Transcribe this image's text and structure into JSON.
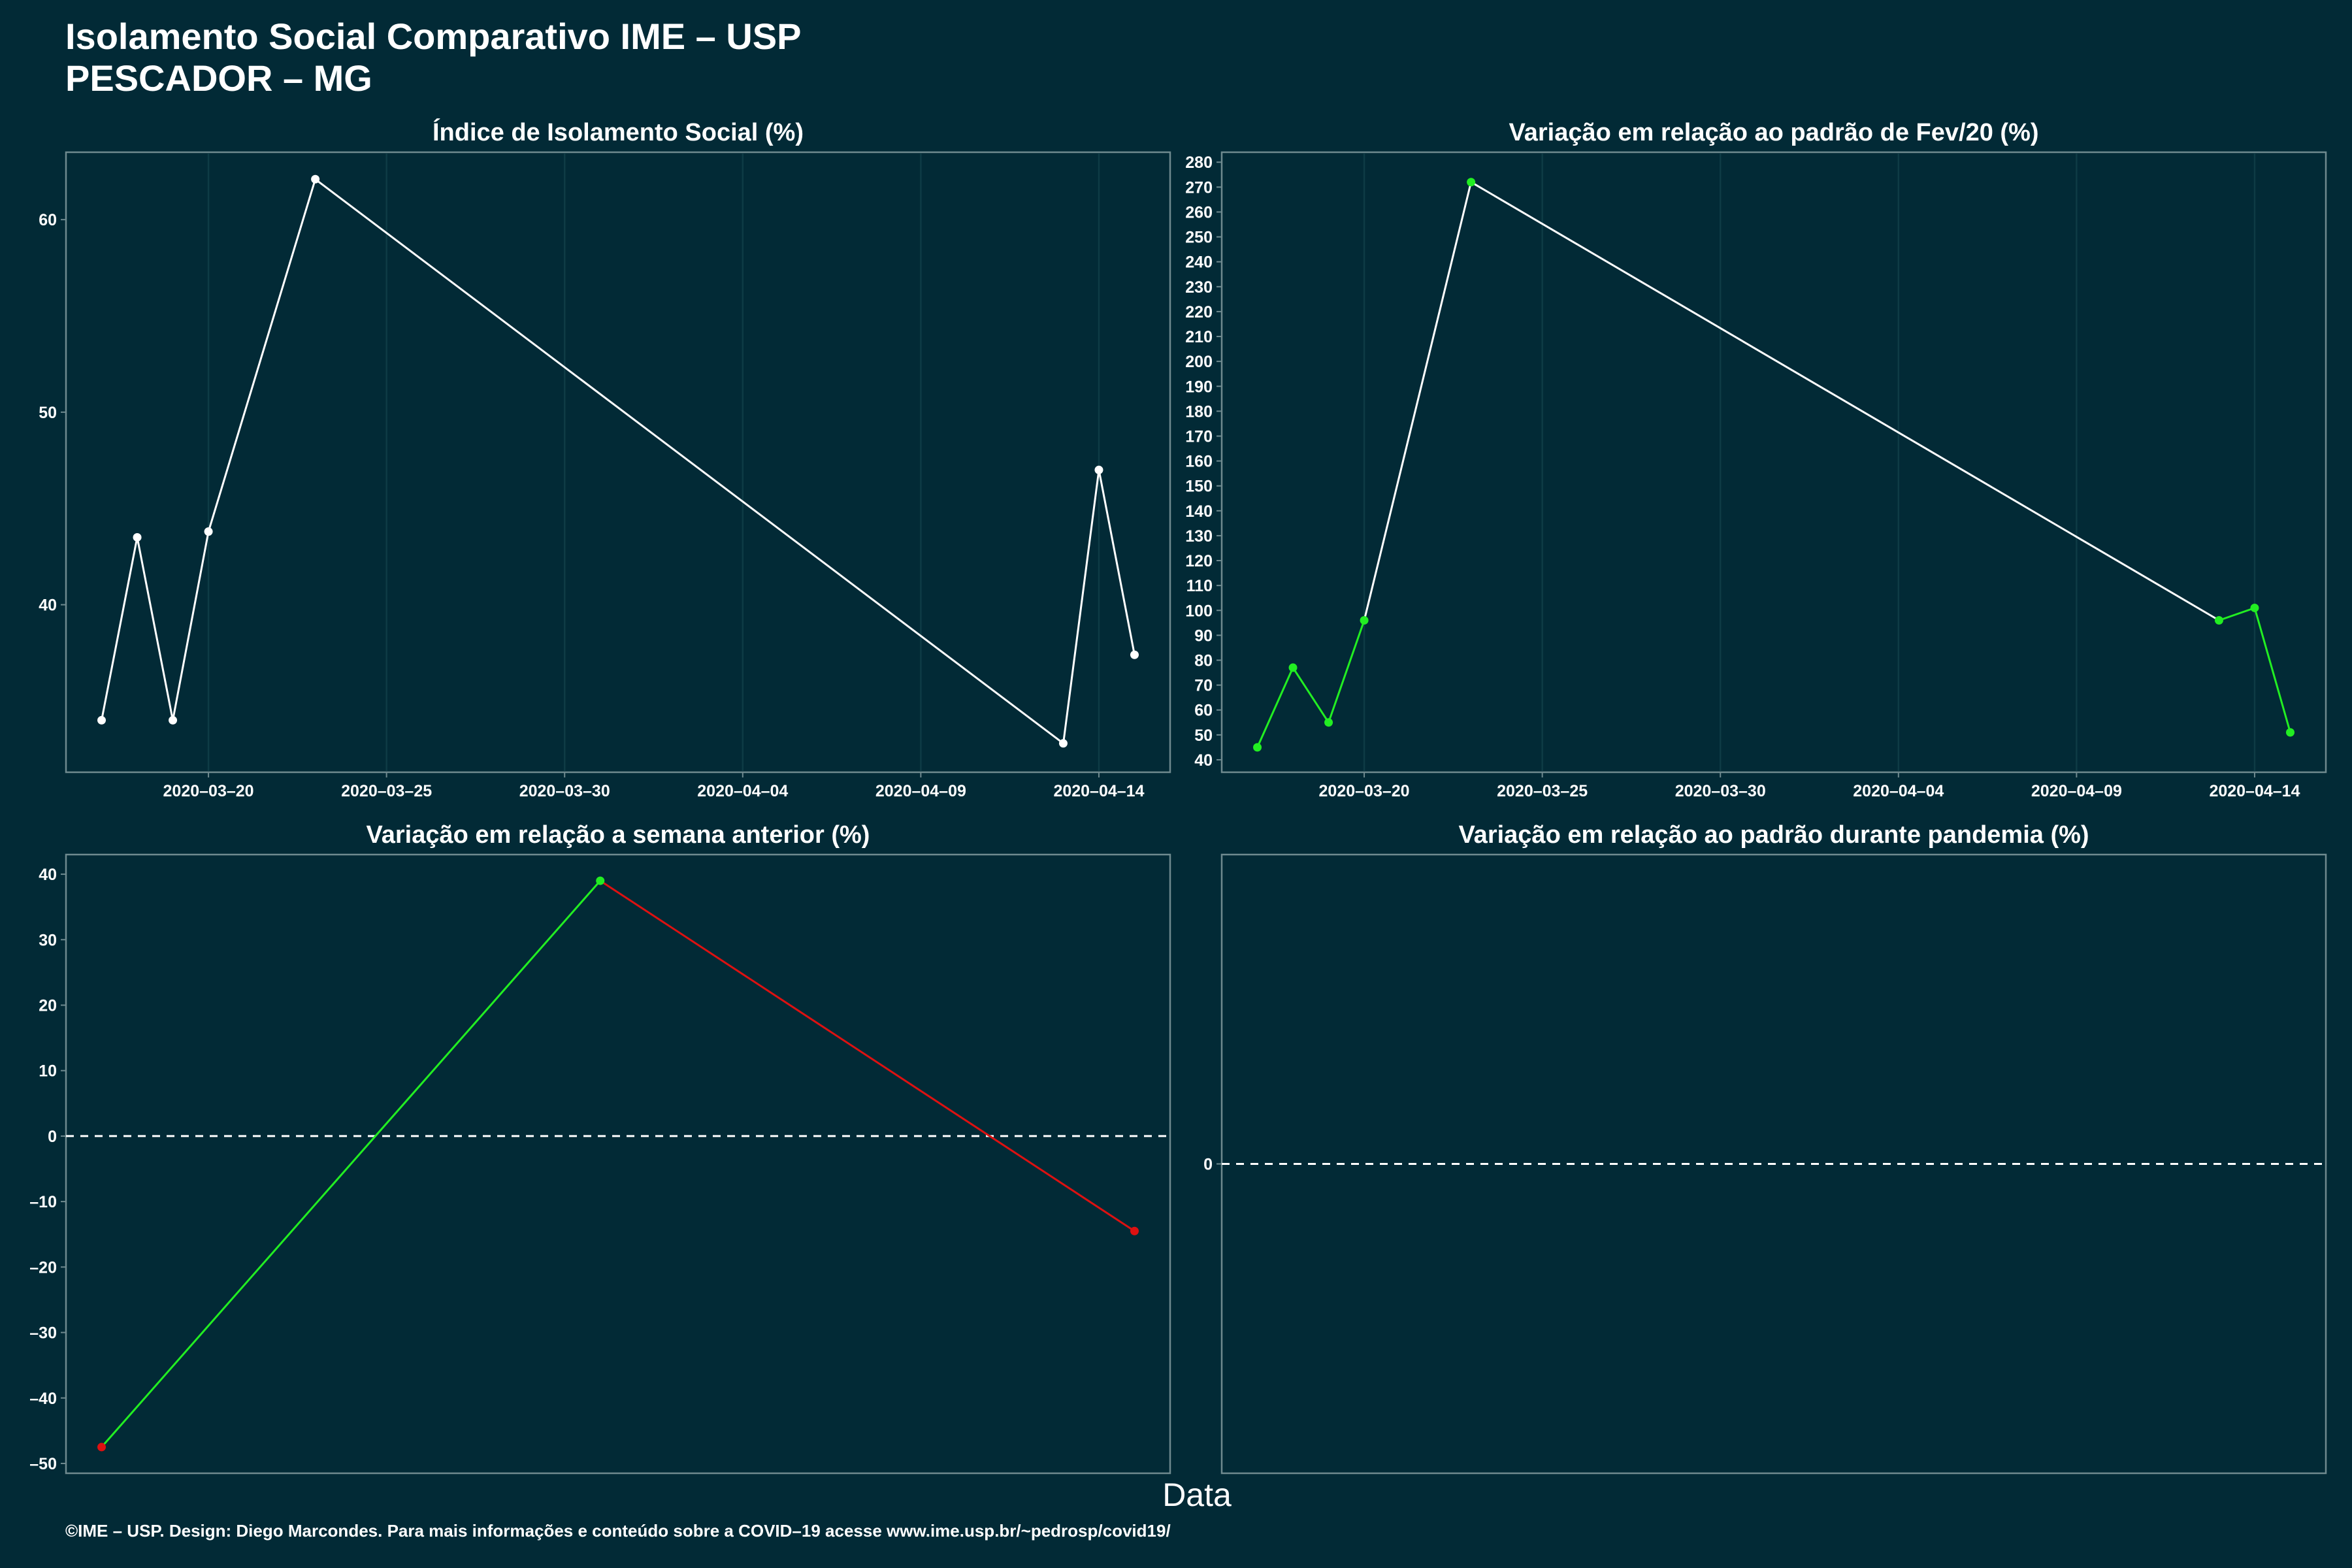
{
  "header": {
    "title_line1": "Isolamento Social Comparativo IME – USP",
    "title_line2": "PESCADOR – MG"
  },
  "x_axis_title": "Data",
  "caption": "©IME – USP. Design: Diego Marcondes. Para mais informações e conteúdo sobre a COVID–19 acesse www.ime.usp.br/~pedrosp/covid19/",
  "colors": {
    "background": "#022A36",
    "panel_border": "#6F8A8F",
    "grid": "#0E3B45",
    "line_white": "#FFFFFF",
    "green": "#22EE22",
    "red": "#DD1111"
  },
  "chart_data": [
    {
      "id": "isolation-index",
      "type": "line",
      "title": "Índice de Isolamento Social (%)",
      "x_tick_labels": [
        "2020–03–20",
        "2020–03–25",
        "2020–03–30",
        "2020–04–04",
        "2020–04–09",
        "2020–04–14"
      ],
      "x_ticks": [
        "2020-03-20",
        "2020-03-25",
        "2020-03-30",
        "2020-04-04",
        "2020-04-09",
        "2020-04-14"
      ],
      "xlim": [
        "2020-03-16",
        "2020-04-16"
      ],
      "y_ticks": [
        40,
        50,
        60
      ],
      "y_tick_labels": [
        "40",
        "50",
        "60"
      ],
      "ylim": [
        31.3,
        63.5
      ],
      "series": [
        {
          "color": "white",
          "points": [
            {
              "x": "2020-03-17",
              "y": 34.0
            },
            {
              "x": "2020-03-18",
              "y": 43.5
            },
            {
              "x": "2020-03-19",
              "y": 34.0
            },
            {
              "x": "2020-03-20",
              "y": 43.8
            },
            {
              "x": "2020-03-23",
              "y": 62.1
            },
            {
              "x": "2020-04-13",
              "y": 32.8
            },
            {
              "x": "2020-04-14",
              "y": 47.0
            },
            {
              "x": "2020-04-15",
              "y": 37.4
            }
          ]
        }
      ]
    },
    {
      "id": "variation-feb",
      "type": "line",
      "title": "Variação em relação ao padrão de Fev/20 (%)",
      "x_tick_labels": [
        "2020–03–20",
        "2020–03–25",
        "2020–03–30",
        "2020–04–04",
        "2020–04–09",
        "2020–04–14"
      ],
      "x_ticks": [
        "2020-03-20",
        "2020-03-25",
        "2020-03-30",
        "2020-04-04",
        "2020-04-09",
        "2020-04-14"
      ],
      "xlim": [
        "2020-03-16",
        "2020-04-16"
      ],
      "y_ticks": [
        40,
        50,
        60,
        70,
        80,
        90,
        100,
        110,
        120,
        130,
        140,
        150,
        160,
        170,
        180,
        190,
        200,
        210,
        220,
        230,
        240,
        250,
        260,
        270,
        280
      ],
      "y_tick_labels": [
        "40",
        "50",
        "60",
        "70",
        "80",
        "90",
        "100",
        "110",
        "120",
        "130",
        "140",
        "150",
        "160",
        "170",
        "180",
        "190",
        "200",
        "210",
        "220",
        "230",
        "240",
        "250",
        "260",
        "270",
        "280"
      ],
      "ylim": [
        35,
        284
      ],
      "series": [
        {
          "color": "green",
          "points": [
            {
              "x": "2020-03-17",
              "y": 45
            },
            {
              "x": "2020-03-18",
              "y": 77
            },
            {
              "x": "2020-03-19",
              "y": 55
            },
            {
              "x": "2020-03-20",
              "y": 96
            }
          ]
        },
        {
          "color": "white",
          "points": [
            {
              "x": "2020-03-20",
              "y": 96
            },
            {
              "x": "2020-03-23",
              "y": 272
            },
            {
              "x": "2020-04-13",
              "y": 96
            }
          ]
        },
        {
          "color": "green",
          "points": [
            {
              "x": "2020-04-13",
              "y": 96
            },
            {
              "x": "2020-04-14",
              "y": 101
            },
            {
              "x": "2020-04-15",
              "y": 51
            }
          ]
        }
      ],
      "points": [
        {
          "x": "2020-03-17",
          "y": 45,
          "color": "green"
        },
        {
          "x": "2020-03-18",
          "y": 77,
          "color": "green"
        },
        {
          "x": "2020-03-19",
          "y": 55,
          "color": "green"
        },
        {
          "x": "2020-03-20",
          "y": 96,
          "color": "green"
        },
        {
          "x": "2020-03-23",
          "y": 272,
          "color": "green"
        },
        {
          "x": "2020-04-13",
          "y": 96,
          "color": "green"
        },
        {
          "x": "2020-04-14",
          "y": 101,
          "color": "green"
        },
        {
          "x": "2020-04-15",
          "y": 51,
          "color": "green"
        }
      ]
    },
    {
      "id": "variation-week",
      "type": "line",
      "title": "Variação em relação a semana anterior (%)",
      "x_tick_labels": [],
      "xlim": [
        "2020-03-16",
        "2020-04-16"
      ],
      "y_ticks": [
        -50,
        -40,
        -30,
        -20,
        -10,
        0,
        10,
        20,
        30,
        40
      ],
      "y_tick_labels": [
        "–50",
        "–40",
        "–30",
        "–20",
        "–10",
        "0",
        "10",
        "20",
        "30",
        "40"
      ],
      "ylim": [
        -51.5,
        43
      ],
      "reference_line": 0,
      "series": [
        {
          "color": "green",
          "points": [
            {
              "x": "2020-03-17",
              "y": -47.5
            },
            {
              "x": "2020-03-31",
              "y": 39
            }
          ]
        },
        {
          "color": "red",
          "points": [
            {
              "x": "2020-03-31",
              "y": 39
            },
            {
              "x": "2020-04-15",
              "y": -14.5
            }
          ]
        }
      ],
      "points": [
        {
          "x": "2020-03-17",
          "y": -47.5,
          "color": "red"
        },
        {
          "x": "2020-03-31",
          "y": 39,
          "color": "green"
        },
        {
          "x": "2020-04-15",
          "y": -14.5,
          "color": "red"
        }
      ]
    },
    {
      "id": "variation-pandemic",
      "type": "line",
      "title": "Variação em relação ao padrão durante pandemia (%)",
      "x_tick_labels": [],
      "y_ticks": [
        0
      ],
      "y_tick_labels": [
        "0"
      ],
      "ylim": [
        -1,
        1
      ],
      "reference_line": 0,
      "series": []
    }
  ]
}
